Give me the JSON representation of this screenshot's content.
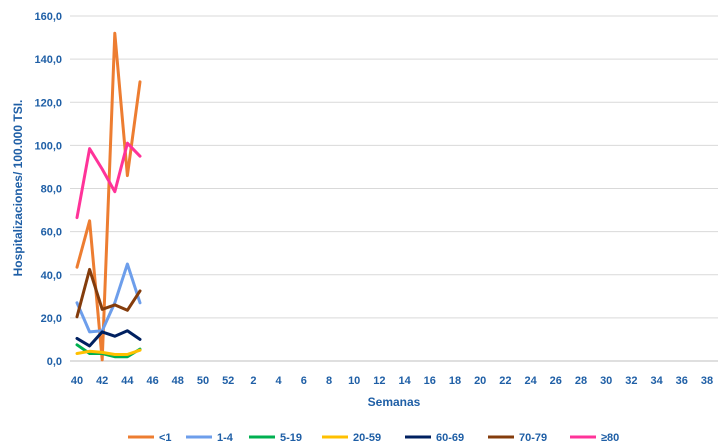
{
  "chart_data": {
    "type": "line",
    "title": "",
    "xlabel": "Semanas",
    "ylabel": "Hospitalizaciones/ 100.000 TSI.",
    "x_ticks": [
      "40",
      "41",
      "42",
      "43",
      "44",
      "45",
      "46",
      "47",
      "48",
      "49",
      "50",
      "51",
      "52",
      "1",
      "2",
      "3",
      "4",
      "5",
      "6",
      "7",
      "8",
      "9",
      "10",
      "11",
      "12",
      "13",
      "14",
      "15",
      "16",
      "17",
      "18",
      "19",
      "20",
      "21",
      "22",
      "23",
      "24",
      "25",
      "26",
      "27",
      "28",
      "29",
      "30",
      "31",
      "32",
      "33",
      "34",
      "35",
      "36",
      "37",
      "38"
    ],
    "x_tick_labels_shown": [
      "40",
      "42",
      "44",
      "46",
      "48",
      "50",
      "52",
      "2",
      "4",
      "6",
      "8",
      "10",
      "12",
      "14",
      "16",
      "18",
      "20",
      "22",
      "24",
      "26",
      "28",
      "30",
      "32",
      "34",
      "36",
      "38"
    ],
    "ylim": [
      0,
      160
    ],
    "y_ticks": [
      "0,0",
      "20,0",
      "40,0",
      "60,0",
      "80,0",
      "100,0",
      "120,0",
      "140,0",
      "160,0"
    ],
    "grid": "horizontal",
    "legend_position": "bottom",
    "x_observed": [
      "40",
      "41",
      "42",
      "43",
      "44",
      "45"
    ],
    "series": [
      {
        "name": "<1",
        "color": "#ed7d31",
        "values": [
          43.5,
          65,
          0.5,
          152,
          86,
          129.5
        ]
      },
      {
        "name": "1-4",
        "color": "#6d9eeb",
        "values": [
          27,
          13.5,
          14,
          27,
          45,
          27
        ]
      },
      {
        "name": "5-19",
        "color": "#00b050",
        "values": [
          7.5,
          3.5,
          3.5,
          2,
          2,
          5.5
        ]
      },
      {
        "name": "20-59",
        "color": "#ffc000",
        "values": [
          3.5,
          4.5,
          4,
          3,
          3,
          5
        ]
      },
      {
        "name": "60-69",
        "color": "#002060",
        "values": [
          10.5,
          7,
          13.5,
          11.5,
          14,
          10
        ]
      },
      {
        "name": "70-79",
        "color": "#843c0c",
        "values": [
          20.5,
          42.5,
          24,
          26,
          23.5,
          32.5
        ]
      },
      {
        "name": "≥80",
        "color": "#ff3399",
        "values": [
          66.5,
          98.5,
          89,
          78.5,
          101,
          95
        ]
      }
    ]
  }
}
